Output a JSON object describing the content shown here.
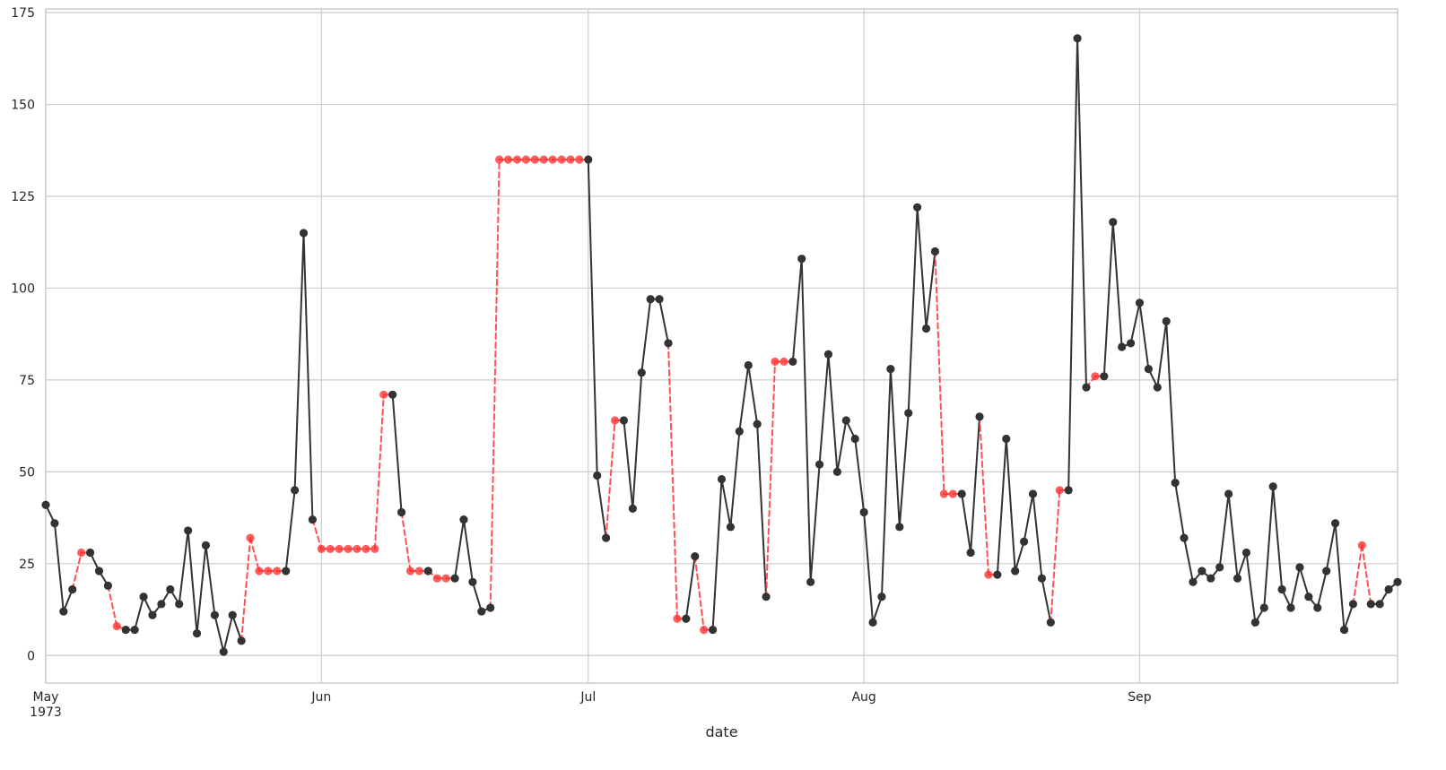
{
  "chart_data": {
    "type": "line",
    "title": "",
    "xlabel": "date",
    "ylabel": "",
    "ylim": [
      -7.5,
      176
    ],
    "x_start": "1973-05-01",
    "x_end": "1973-09-30",
    "grid": true,
    "yticks": [
      0,
      25,
      50,
      75,
      100,
      125,
      150,
      175
    ],
    "xticks": [
      {
        "date": "1973-05-01",
        "label": "May",
        "sublabel": "1973"
      },
      {
        "date": "1973-06-01",
        "label": "Jun",
        "sublabel": ""
      },
      {
        "date": "1973-07-01",
        "label": "Jul",
        "sublabel": ""
      },
      {
        "date": "1973-08-01",
        "label": "Aug",
        "sublabel": ""
      },
      {
        "date": "1973-09-01",
        "label": "Sep",
        "sublabel": ""
      }
    ],
    "colors": {
      "observed": "#333333",
      "imputed": "#ff3333",
      "grid": "#cccccc"
    },
    "series": [
      {
        "values": [
          41,
          36,
          12,
          18,
          28,
          28,
          23,
          19,
          8,
          7,
          7,
          16,
          11,
          14,
          18,
          14,
          34,
          6,
          30,
          11,
          1,
          11,
          4,
          32,
          23,
          23,
          23,
          23,
          45,
          115,
          37,
          29,
          29,
          29,
          29,
          29,
          29,
          29,
          71,
          71,
          39,
          23,
          23,
          23,
          21,
          21,
          21,
          37,
          20,
          12,
          13,
          135,
          135,
          135,
          135,
          135,
          135,
          135,
          135,
          135,
          135,
          135,
          49,
          32,
          64,
          64,
          40,
          77,
          97,
          97,
          85,
          10,
          10,
          27,
          7,
          7,
          48,
          35,
          61,
          79,
          63,
          16,
          80,
          80,
          80,
          108,
          20,
          52,
          82,
          50,
          64,
          59,
          39,
          9,
          16,
          78,
          35,
          66,
          122,
          89,
          110,
          44,
          44,
          44,
          28,
          65,
          22,
          22,
          59,
          23,
          31,
          44,
          21,
          9,
          45,
          45,
          168,
          73,
          76,
          76,
          118,
          84,
          85,
          96,
          78,
          73,
          91,
          47,
          32,
          20,
          23,
          21,
          24,
          44,
          21,
          28,
          9,
          13,
          46,
          18,
          13,
          24,
          16,
          13,
          23,
          36,
          7,
          14,
          30,
          14,
          14,
          18,
          20
        ],
        "imputed": [
          4,
          8,
          23,
          24,
          25,
          26,
          31,
          32,
          33,
          34,
          35,
          36,
          37,
          38,
          41,
          42,
          44,
          45,
          51,
          52,
          53,
          54,
          55,
          56,
          57,
          58,
          59,
          60,
          64,
          71,
          74,
          82,
          83,
          101,
          102,
          106,
          114,
          118,
          148
        ]
      }
    ]
  }
}
